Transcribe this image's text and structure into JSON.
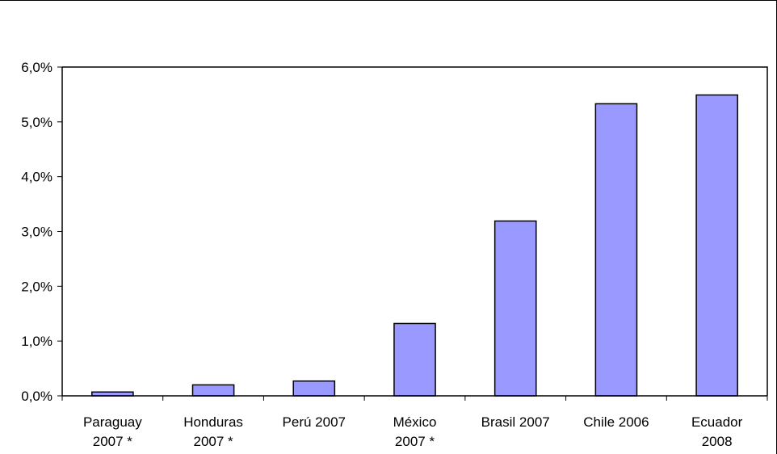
{
  "chart_data": {
    "type": "bar",
    "categories": [
      [
        "Paraguay",
        "2007 *"
      ],
      [
        "Honduras",
        "2007 *"
      ],
      [
        "Perú 2007"
      ],
      [
        "México",
        "2007 *"
      ],
      [
        "Brasil 2007"
      ],
      [
        "Chile 2006"
      ],
      [
        "Ecuador",
        "2008"
      ]
    ],
    "values": [
      0.07,
      0.2,
      0.27,
      1.32,
      3.19,
      5.33,
      5.49
    ],
    "ylim": [
      0,
      6
    ],
    "yticks": [
      0,
      1,
      2,
      3,
      4,
      5,
      6
    ],
    "ytick_labels": [
      "0,0%",
      "1,0%",
      "2,0%",
      "3,0%",
      "4,0%",
      "5,0%",
      "6,0%"
    ],
    "bar_color": "#9999ff",
    "grid": false,
    "title": "",
    "xlabel": "",
    "ylabel": ""
  }
}
